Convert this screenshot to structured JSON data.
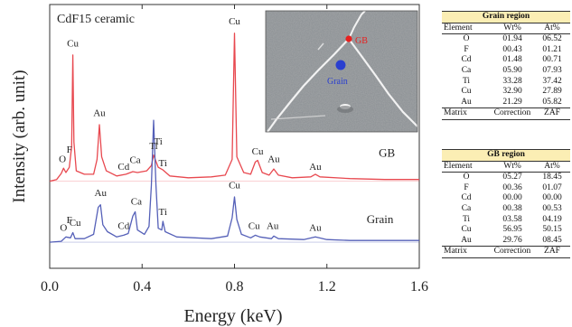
{
  "chart_data": {
    "type": "line",
    "title": "CdF15 ceramic",
    "xlabel": "Energy (keV)",
    "ylabel": "Intensity (arb. unit)",
    "xlim": [
      0.0,
      1.6
    ],
    "xticks": [
      "0.0",
      "0.4",
      "0.8",
      "1.2",
      "1.6"
    ],
    "xtick_values": [
      0.0,
      0.4,
      0.8,
      1.2,
      1.6
    ],
    "grid": false,
    "series": [
      {
        "name": "GB",
        "color": "#e8484f",
        "baseline": 7.0,
        "points": [
          [
            0.0,
            7.0
          ],
          [
            0.03,
            7.2
          ],
          [
            0.05,
            7.9
          ],
          [
            0.06,
            8.5
          ],
          [
            0.07,
            8.0
          ],
          [
            0.085,
            8.6
          ],
          [
            0.095,
            11.0
          ],
          [
            0.1,
            21.5
          ],
          [
            0.105,
            11.5
          ],
          [
            0.115,
            8.2
          ],
          [
            0.15,
            7.8
          ],
          [
            0.19,
            7.8
          ],
          [
            0.205,
            9.5
          ],
          [
            0.215,
            13.5
          ],
          [
            0.225,
            9.8
          ],
          [
            0.245,
            8.2
          ],
          [
            0.29,
            7.6
          ],
          [
            0.33,
            7.8
          ],
          [
            0.36,
            8.1
          ],
          [
            0.38,
            8.0
          ],
          [
            0.42,
            8.2
          ],
          [
            0.44,
            8.8
          ],
          [
            0.45,
            10.0
          ],
          [
            0.47,
            8.6
          ],
          [
            0.49,
            8.3
          ],
          [
            0.52,
            7.6
          ],
          [
            0.6,
            7.4
          ],
          [
            0.7,
            7.5
          ],
          [
            0.76,
            7.7
          ],
          [
            0.79,
            9.5
          ],
          [
            0.8,
            24.0
          ],
          [
            0.81,
            9.8
          ],
          [
            0.84,
            8.0
          ],
          [
            0.87,
            7.8
          ],
          [
            0.89,
            9.2
          ],
          [
            0.9,
            9.4
          ],
          [
            0.92,
            8.0
          ],
          [
            0.95,
            7.7
          ],
          [
            0.97,
            8.4
          ],
          [
            0.99,
            7.7
          ],
          [
            1.05,
            7.4
          ],
          [
            1.13,
            7.5
          ],
          [
            1.15,
            7.8
          ],
          [
            1.17,
            7.5
          ],
          [
            1.3,
            7.3
          ],
          [
            1.45,
            7.2
          ],
          [
            1.6,
            7.2
          ]
        ]
      },
      {
        "name": "Grain",
        "color": "#5560b8",
        "baseline": 0.0,
        "points": [
          [
            0.0,
            0.0
          ],
          [
            0.05,
            0.1
          ],
          [
            0.07,
            0.6
          ],
          [
            0.09,
            0.5
          ],
          [
            0.1,
            1.1
          ],
          [
            0.11,
            0.4
          ],
          [
            0.15,
            0.4
          ],
          [
            0.19,
            0.9
          ],
          [
            0.21,
            4.0
          ],
          [
            0.22,
            4.3
          ],
          [
            0.23,
            2.0
          ],
          [
            0.25,
            1.2
          ],
          [
            0.29,
            0.6
          ],
          [
            0.32,
            0.8
          ],
          [
            0.34,
            1.0
          ],
          [
            0.36,
            3.0
          ],
          [
            0.37,
            3.5
          ],
          [
            0.38,
            1.4
          ],
          [
            0.41,
            0.9
          ],
          [
            0.43,
            1.8
          ],
          [
            0.44,
            6.5
          ],
          [
            0.45,
            14.0
          ],
          [
            0.46,
            6.5
          ],
          [
            0.47,
            1.6
          ],
          [
            0.485,
            1.4
          ],
          [
            0.49,
            2.4
          ],
          [
            0.5,
            1.2
          ],
          [
            0.55,
            0.6
          ],
          [
            0.7,
            0.4
          ],
          [
            0.77,
            0.7
          ],
          [
            0.79,
            2.8
          ],
          [
            0.8,
            5.2
          ],
          [
            0.81,
            2.6
          ],
          [
            0.83,
            0.9
          ],
          [
            0.87,
            0.5
          ],
          [
            0.89,
            0.8
          ],
          [
            0.91,
            0.6
          ],
          [
            0.96,
            0.4
          ],
          [
            0.97,
            0.7
          ],
          [
            0.99,
            0.4
          ],
          [
            1.1,
            0.3
          ],
          [
            1.15,
            0.6
          ],
          [
            1.2,
            0.3
          ],
          [
            1.3,
            0.2
          ],
          [
            1.45,
            0.2
          ],
          [
            1.6,
            0.2
          ]
        ]
      }
    ],
    "annotations": [
      {
        "text": "O",
        "series": "GB",
        "x": 0.055,
        "y": 9.2
      },
      {
        "text": "F",
        "series": "GB",
        "x": 0.085,
        "y": 10.3
      },
      {
        "text": "Cu",
        "series": "GB",
        "x": 0.1,
        "y": 22.5
      },
      {
        "text": "Au",
        "series": "GB",
        "x": 0.215,
        "y": 14.5
      },
      {
        "text": "Cd",
        "series": "GB",
        "x": 0.32,
        "y": 8.3
      },
      {
        "text": "Ca",
        "series": "GB",
        "x": 0.37,
        "y": 9.1
      },
      {
        "text": "Ti",
        "series": "GB",
        "x": 0.45,
        "y": 10.7
      },
      {
        "text": "Ti",
        "series": "GB",
        "x": 0.49,
        "y": 8.7
      },
      {
        "text": "Cu",
        "series": "GB",
        "x": 0.8,
        "y": 25.0
      },
      {
        "text": "Cu",
        "series": "GB",
        "x": 0.9,
        "y": 10.1
      },
      {
        "text": "Au",
        "series": "GB",
        "x": 0.97,
        "y": 9.2
      },
      {
        "text": "Au",
        "series": "GB",
        "x": 1.15,
        "y": 8.3
      },
      {
        "text": "O",
        "series": "Grain",
        "x": 0.06,
        "y": 1.3
      },
      {
        "text": "F",
        "series": "Grain",
        "x": 0.085,
        "y": 2.2
      },
      {
        "text": "Cu",
        "series": "Grain",
        "x": 0.11,
        "y": 1.9
      },
      {
        "text": "Au",
        "series": "Grain",
        "x": 0.22,
        "y": 5.3
      },
      {
        "text": "Cd",
        "series": "Grain",
        "x": 0.32,
        "y": 1.5
      },
      {
        "text": "Ca",
        "series": "Grain",
        "x": 0.375,
        "y": 4.3
      },
      {
        "text": "Ti",
        "series": "Grain",
        "x": 0.47,
        "y": 11.2
      },
      {
        "text": "Ti",
        "series": "Grain",
        "x": 0.49,
        "y": 3.1
      },
      {
        "text": "Cu",
        "series": "Grain",
        "x": 0.8,
        "y": 6.2
      },
      {
        "text": "Cu",
        "series": "Grain",
        "x": 0.885,
        "y": 1.5
      },
      {
        "text": "Au",
        "series": "Grain",
        "x": 0.965,
        "y": 1.5
      },
      {
        "text": "Au",
        "series": "Grain",
        "x": 1.15,
        "y": 1.3
      }
    ],
    "series_labels": [
      {
        "text": "GB",
        "x": 1.46,
        "y": 9.8
      },
      {
        "text": "Grain",
        "x": 1.43,
        "y": 2.2
      }
    ]
  },
  "inset": {
    "gb_marker_label": "GB",
    "grain_marker_label": "Grain",
    "gb_color": "#e8201f",
    "grain_color": "#2a3fd0"
  },
  "tables": [
    {
      "caption": "Grain region",
      "headers": [
        "Element",
        "Wt%",
        "At%"
      ],
      "rows": [
        [
          "O",
          "01.94",
          "06.52"
        ],
        [
          "F",
          "00.43",
          "01.21"
        ],
        [
          "Cd",
          "01.48",
          "00.71"
        ],
        [
          "Ca",
          "05.90",
          "07.93"
        ],
        [
          "Ti",
          "33.28",
          "37.42"
        ],
        [
          "Cu",
          "32.90",
          "27.89"
        ],
        [
          "Au",
          "21.29",
          "05.82"
        ]
      ],
      "footer": [
        "Matrix",
        "Correction",
        "ZAF"
      ]
    },
    {
      "caption": "GB region",
      "headers": [
        "Element",
        "Wt%",
        "At%"
      ],
      "rows": [
        [
          "O",
          "05.27",
          "18.45"
        ],
        [
          "F",
          "00.36",
          "01.07"
        ],
        [
          "Cd",
          "00.00",
          "00.00"
        ],
        [
          "Ca",
          "00.38",
          "00.53"
        ],
        [
          "Ti",
          "03.58",
          "04.19"
        ],
        [
          "Cu",
          "56.95",
          "50.15"
        ],
        [
          "Au",
          "29.76",
          "08.45"
        ]
      ],
      "footer": [
        "Matrix",
        "Correction",
        "ZAF"
      ]
    }
  ]
}
